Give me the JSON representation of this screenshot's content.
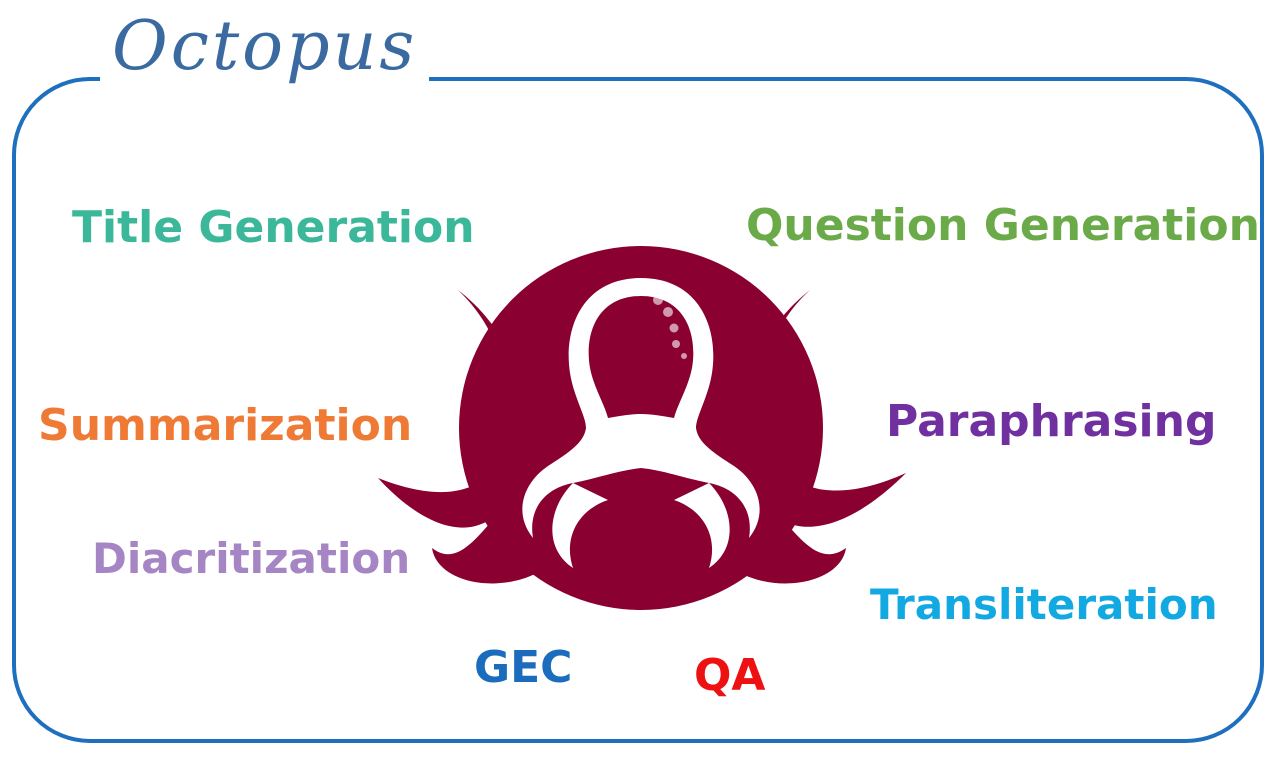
{
  "title": "Octopus",
  "colors": {
    "frame": "#1f6fbf",
    "title": "#3a6aa0",
    "logo": "#8a0030"
  },
  "logo_icon": "octopus-icon",
  "tasks": [
    {
      "key": "title-generation",
      "label": "Title Generation",
      "color": "#3bb79a"
    },
    {
      "key": "question-generation",
      "label": "Question Generation",
      "color": "#6aaa48"
    },
    {
      "key": "summarization",
      "label": "Summarization",
      "color": "#ee7a35"
    },
    {
      "key": "paraphrasing",
      "label": "Paraphrasing",
      "color": "#7030a0"
    },
    {
      "key": "diacritization",
      "label": "Diacritization",
      "color": "#a585c4"
    },
    {
      "key": "transliteration",
      "label": "Transliteration",
      "color": "#12a9e3"
    },
    {
      "key": "gec",
      "label": "GEC",
      "color": "#1b6cbd"
    },
    {
      "key": "qa",
      "label": "QA",
      "color": "#ee1111"
    }
  ]
}
